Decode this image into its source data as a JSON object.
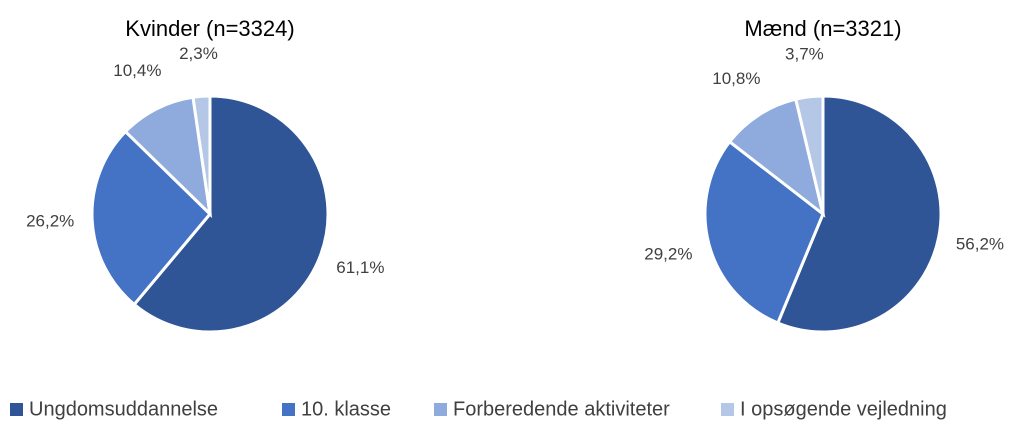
{
  "chart_data": [
    {
      "type": "pie",
      "title": "Kvinder (n=3324)",
      "categories": [
        "Ungdomsuddannelse",
        "10. klasse",
        "Forberedende aktiviteter",
        "I opsøgende vejledning"
      ],
      "values": [
        61.1,
        26.2,
        10.4,
        2.3
      ],
      "value_labels": [
        "61,1%",
        "26,2%",
        "10,4%",
        "2,3%"
      ],
      "colors": [
        "#2f5597",
        "#4472c4",
        "#8faadc",
        "#b4c7e7"
      ]
    },
    {
      "type": "pie",
      "title": "Mænd (n=3321)",
      "categories": [
        "Ungdomsuddannelse",
        "10. klasse",
        "Forberedende aktiviteter",
        "I opsøgende vejledning"
      ],
      "values": [
        56.2,
        29.2,
        10.8,
        3.7
      ],
      "value_labels": [
        "56,2%",
        "29,2%",
        "10,8%",
        "3,7%"
      ],
      "colors": [
        "#2f5597",
        "#4472c4",
        "#8faadc",
        "#b4c7e7"
      ]
    }
  ]
}
